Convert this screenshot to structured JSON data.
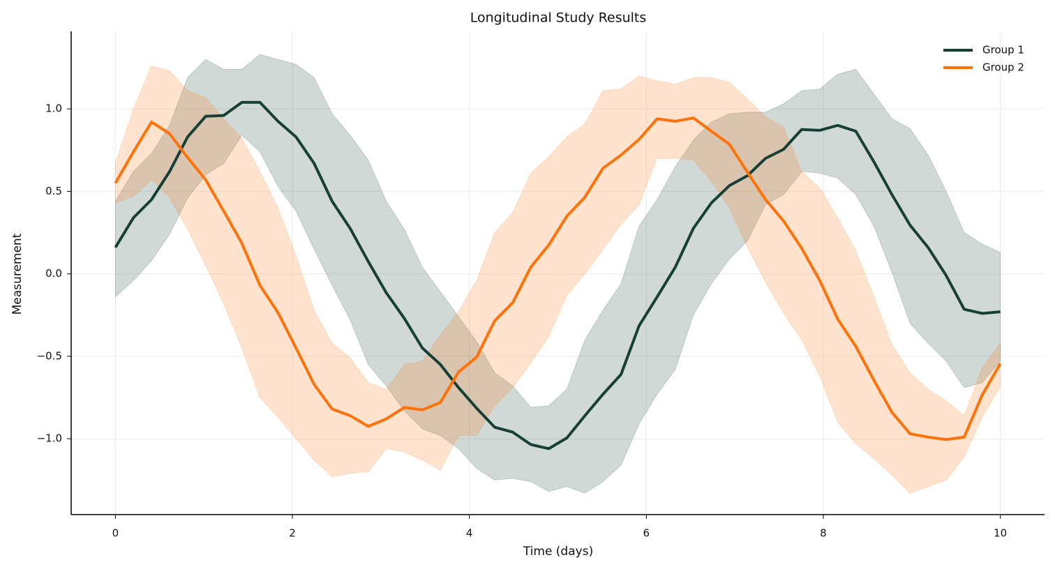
{
  "chart_data": {
    "type": "line",
    "title": "Longitudinal Study Results",
    "x_label": "Time (days)",
    "y_label": "Measurement",
    "x": [
      0,
      0.204,
      0.408,
      0.612,
      0.816,
      1.02,
      1.224,
      1.429,
      1.633,
      1.837,
      2.041,
      2.245,
      2.449,
      2.653,
      2.857,
      3.061,
      3.265,
      3.469,
      3.673,
      3.878,
      4.082,
      4.286,
      4.49,
      4.694,
      4.898,
      5.102,
      5.306,
      5.51,
      5.714,
      5.918,
      6.122,
      6.327,
      6.531,
      6.735,
      6.939,
      7.143,
      7.347,
      7.551,
      7.755,
      7.959,
      8.163,
      8.367,
      8.571,
      8.776,
      8.98,
      9.184,
      9.388,
      9.592,
      9.796,
      10
    ],
    "series": [
      {
        "name": "Group 1",
        "color": "#173f35",
        "values": [
          0.16,
          0.34,
          0.45,
          0.62,
          0.83,
          0.955,
          0.96,
          1.04,
          1.04,
          0.925,
          0.83,
          0.67,
          0.44,
          0.275,
          0.075,
          -0.115,
          -0.27,
          -0.45,
          -0.55,
          -0.69,
          -0.815,
          -0.93,
          -0.96,
          -1.035,
          -1.06,
          -0.995,
          -0.86,
          -0.73,
          -0.61,
          -0.315,
          -0.14,
          0.04,
          0.275,
          0.43,
          0.535,
          0.595,
          0.7,
          0.755,
          0.875,
          0.87,
          0.9,
          0.865,
          0.68,
          0.48,
          0.295,
          0.16,
          -0.01,
          -0.215,
          -0.24,
          -0.23
        ],
        "upper": [
          0.44,
          0.62,
          0.73,
          0.9,
          1.19,
          1.3,
          1.24,
          1.24,
          1.33,
          1.3,
          1.27,
          1.19,
          0.97,
          0.84,
          0.69,
          0.44,
          0.27,
          0.04,
          -0.11,
          -0.26,
          -0.41,
          -0.6,
          -0.68,
          -0.81,
          -0.8,
          -0.7,
          -0.4,
          -0.22,
          -0.06,
          0.29,
          0.45,
          0.65,
          0.81,
          0.92,
          0.97,
          0.98,
          0.98,
          1.03,
          1.11,
          1.12,
          1.21,
          1.24,
          1.09,
          0.94,
          0.88,
          0.72,
          0.5,
          0.25,
          0.18,
          0.13
        ],
        "lower": [
          -0.14,
          -0.04,
          0.08,
          0.24,
          0.46,
          0.6,
          0.67,
          0.84,
          0.74,
          0.53,
          0.38,
          0.15,
          -0.07,
          -0.28,
          -0.55,
          -0.68,
          -0.83,
          -0.94,
          -0.98,
          -1.06,
          -1.18,
          -1.25,
          -1.24,
          -1.26,
          -1.32,
          -1.29,
          -1.33,
          -1.26,
          -1.16,
          -0.91,
          -0.73,
          -0.58,
          -0.25,
          -0.06,
          0.09,
          0.2,
          0.42,
          0.48,
          0.62,
          0.61,
          0.58,
          0.48,
          0.29,
          0.01,
          -0.3,
          -0.42,
          -0.53,
          -0.69,
          -0.66,
          -0.53
        ]
      },
      {
        "name": "Group 2",
        "color": "#ff7209",
        "values": [
          0.55,
          0.74,
          0.92,
          0.85,
          0.705,
          0.57,
          0.38,
          0.185,
          -0.07,
          -0.235,
          -0.45,
          -0.67,
          -0.82,
          -0.86,
          -0.925,
          -0.88,
          -0.81,
          -0.825,
          -0.78,
          -0.595,
          -0.505,
          -0.285,
          -0.175,
          0.04,
          0.175,
          0.35,
          0.465,
          0.64,
          0.72,
          0.815,
          0.94,
          0.925,
          0.945,
          0.865,
          0.785,
          0.615,
          0.45,
          0.32,
          0.155,
          -0.04,
          -0.275,
          -0.44,
          -0.645,
          -0.84,
          -0.97,
          -0.99,
          -1.005,
          -0.99,
          -0.735,
          -0.545
        ],
        "upper": [
          0.67,
          1.0,
          1.26,
          1.23,
          1.11,
          1.07,
          0.94,
          0.82,
          0.62,
          0.4,
          0.11,
          -0.22,
          -0.42,
          -0.51,
          -0.66,
          -0.7,
          -0.55,
          -0.53,
          -0.37,
          -0.23,
          -0.04,
          0.25,
          0.37,
          0.61,
          0.71,
          0.83,
          0.91,
          1.11,
          1.12,
          1.2,
          1.17,
          1.15,
          1.19,
          1.19,
          1.16,
          1.06,
          0.95,
          0.89,
          0.62,
          0.52,
          0.34,
          0.14,
          -0.14,
          -0.43,
          -0.6,
          -0.7,
          -0.77,
          -0.86,
          -0.57,
          -0.42
        ],
        "lower": [
          0.43,
          0.47,
          0.57,
          0.46,
          0.27,
          0.05,
          -0.18,
          -0.45,
          -0.75,
          -0.87,
          -1.0,
          -1.13,
          -1.23,
          -1.21,
          -1.2,
          -1.06,
          -1.08,
          -1.13,
          -1.19,
          -0.98,
          -0.98,
          -0.8,
          -0.69,
          -0.54,
          -0.38,
          -0.13,
          0.0,
          0.15,
          0.3,
          0.42,
          0.7,
          0.7,
          0.69,
          0.56,
          0.4,
          0.16,
          -0.05,
          -0.24,
          -0.4,
          -0.62,
          -0.9,
          -1.03,
          -1.12,
          -1.22,
          -1.33,
          -1.29,
          -1.25,
          -1.11,
          -0.87,
          -0.68
        ]
      }
    ],
    "xlim": [
      -0.5,
      10.5
    ],
    "xticks": [
      0,
      2,
      4,
      6,
      8,
      10
    ],
    "ylim": [
      -1.46,
      1.47
    ],
    "yticks": [
      {
        "value": -1,
        "label": "−1.0"
      },
      {
        "value": -0.5,
        "label": "−0.5"
      },
      {
        "value": 0,
        "label": "0.0"
      },
      0.5,
      {
        "value": 1,
        "label": "1.0"
      }
    ],
    "grid": true,
    "legend": "upper right"
  }
}
